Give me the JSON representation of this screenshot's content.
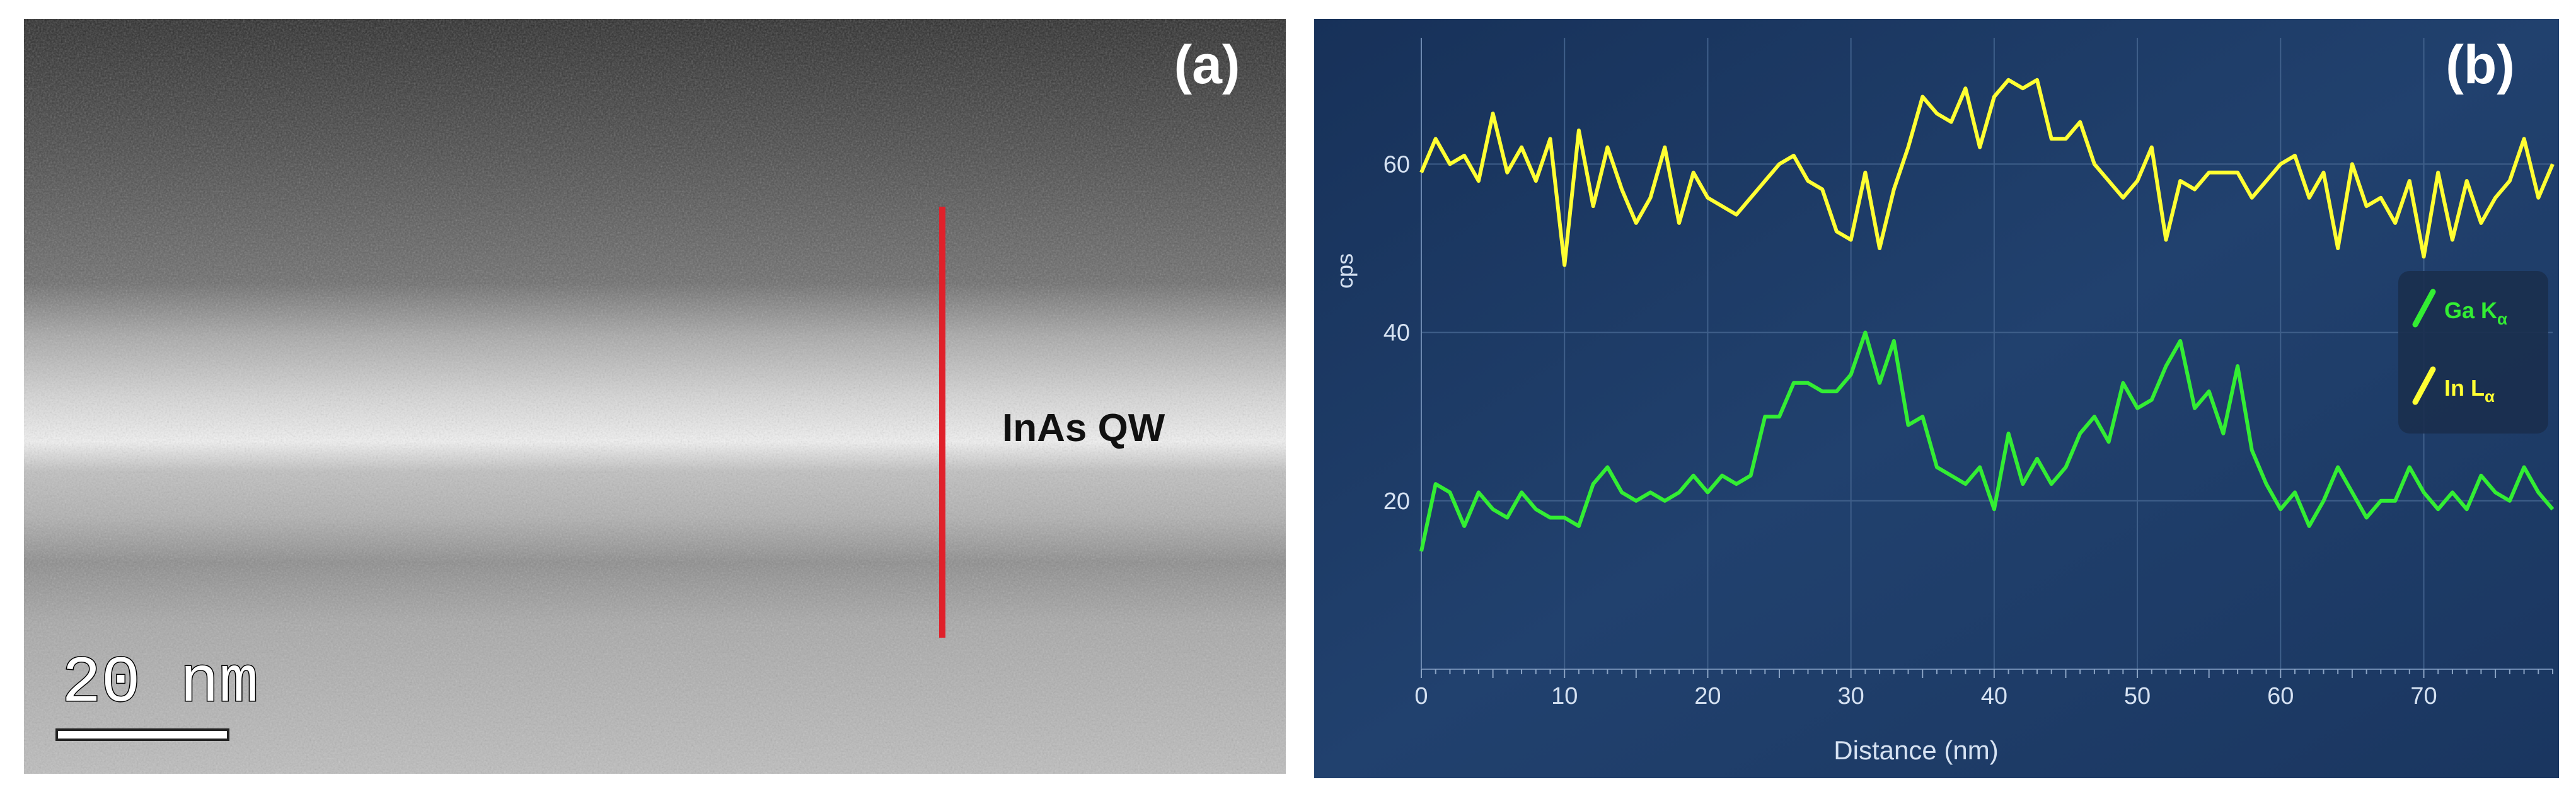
{
  "panel_a": {
    "label": "(a)",
    "annotation": "InAs QW",
    "scale_bar_label": "20 nm"
  },
  "panel_b": {
    "label": "(b)"
  },
  "colors": {
    "background": "#ffffff",
    "plot_background": "#1f3b66",
    "grid": "#3f5f8a",
    "axis_text": "#d6e2f2",
    "in_series": "#ffff33",
    "ga_series": "#33ee33",
    "legend_bg": "#1a2f4e",
    "marker_line": "#e0202a"
  },
  "chart_data": {
    "type": "line",
    "title": "",
    "xlabel": "Distance (nm)",
    "ylabel": "cps",
    "xlim": [
      0,
      79
    ],
    "ylim": [
      0,
      75
    ],
    "xticks": [
      0,
      10,
      20,
      30,
      40,
      50,
      60,
      70
    ],
    "yticks": [
      20,
      40,
      60
    ],
    "grid": true,
    "legend_position": "right",
    "series": [
      {
        "name": "In Lα",
        "legend_main": "In L",
        "legend_sub": "α",
        "color": "#ffff33",
        "x": [
          0,
          1,
          2,
          3,
          4,
          5,
          6,
          7,
          8,
          9,
          10,
          11,
          12,
          13,
          14,
          15,
          16,
          17,
          18,
          19,
          20,
          21,
          22,
          23,
          24,
          25,
          26,
          27,
          28,
          29,
          30,
          31,
          32,
          33,
          34,
          35,
          36,
          37,
          38,
          39,
          40,
          41,
          42,
          43,
          44,
          45,
          46,
          47,
          48,
          49,
          50,
          51,
          52,
          53,
          54,
          55,
          56,
          57,
          58,
          59,
          60,
          61,
          62,
          63,
          64,
          65,
          66,
          67,
          68,
          69,
          70,
          71,
          72,
          73,
          74,
          75,
          76,
          77,
          78,
          79
        ],
        "values": [
          59,
          63,
          60,
          61,
          58,
          66,
          59,
          62,
          58,
          63,
          48,
          64,
          55,
          62,
          57,
          53,
          56,
          62,
          53,
          59,
          56,
          55,
          54,
          56,
          58,
          60,
          61,
          58,
          57,
          52,
          51,
          59,
          50,
          57,
          62,
          68,
          66,
          65,
          69,
          62,
          68,
          70,
          69,
          70,
          63,
          63,
          65,
          60,
          58,
          56,
          58,
          62,
          51,
          58,
          57,
          59,
          59,
          59,
          56,
          58,
          60,
          61,
          56,
          59,
          50,
          60,
          55,
          56,
          53,
          58,
          49,
          59,
          51,
          58,
          53,
          56,
          58,
          63,
          56,
          60
        ],
        "note": "plotted sequentially across x-range"
      },
      {
        "name": "Ga Kα",
        "legend_main": "Ga K",
        "legend_sub": "α",
        "color": "#33ee33",
        "values": [
          14,
          22,
          21,
          17,
          21,
          19,
          18,
          21,
          19,
          18,
          18,
          17,
          22,
          24,
          21,
          20,
          21,
          20,
          21,
          23,
          21,
          23,
          22,
          23,
          30,
          30,
          34,
          34,
          33,
          33,
          35,
          40,
          34,
          39,
          29,
          30,
          24,
          23,
          22,
          24,
          19,
          28,
          22,
          25,
          22,
          24,
          28,
          30,
          27,
          34,
          31,
          32,
          36,
          39,
          31,
          33,
          28,
          36,
          26,
          22,
          19,
          21,
          17,
          20,
          24,
          21,
          18,
          20,
          20,
          24,
          21,
          19,
          21,
          19,
          23,
          21,
          20,
          24,
          21,
          19
        ],
        "note": "plotted sequentially across x-range"
      }
    ]
  }
}
